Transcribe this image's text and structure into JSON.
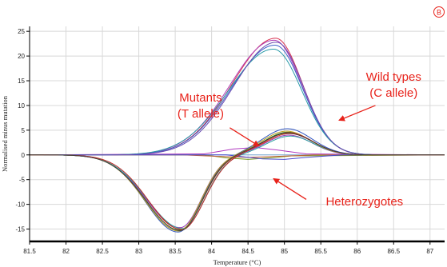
{
  "panel_label": "B",
  "colors": {
    "annotation": "#e8231b",
    "grid": "#d8d8d8",
    "axis": "#000000",
    "zero_line": "#7aa9d6"
  },
  "chart_data": {
    "type": "line",
    "title": "",
    "xlabel": "Temperature (°C)",
    "ylabel": "Normalised minus mutation",
    "xlim": [
      81.5,
      87.2
    ],
    "ylim": [
      -17.5,
      26
    ],
    "grid": true,
    "x_ticks": [
      81.5,
      82,
      82.5,
      83,
      83.5,
      84,
      84.5,
      85,
      85.5,
      86,
      86.5,
      87
    ],
    "x_tick_labels": [
      "81.5",
      "82",
      "82.5",
      "83",
      "83.5",
      "84",
      "84.5",
      "85",
      "85.5",
      "86",
      "86.5",
      "87"
    ],
    "y_ticks": [
      25,
      20,
      15,
      10,
      5,
      0,
      -5,
      -10,
      -15
    ],
    "y_tick_labels": [
      "25",
      "20",
      "15",
      "10",
      "5",
      "0",
      "-5",
      "-10",
      "-15"
    ],
    "annotations": [
      {
        "label": "Mutants",
        "x": 83.85,
        "y": 10.8
      },
      {
        "label": "(T allele)",
        "x": 83.85,
        "y": 7.6
      },
      {
        "label": "Wild types",
        "x": 86.5,
        "y": 15.0
      },
      {
        "label": "(C allele)",
        "x": 86.5,
        "y": 11.8
      },
      {
        "label": "Heterozygotes",
        "x": 86.1,
        "y": -10.2
      }
    ],
    "arrows": [
      {
        "from": [
          84.25,
          5.5
        ],
        "to": [
          84.65,
          1.8
        ]
      },
      {
        "from": [
          86.25,
          10.0
        ],
        "to": [
          85.75,
          7.0
        ]
      },
      {
        "from": [
          85.3,
          -9.0
        ],
        "to": [
          84.85,
          -4.8
        ]
      }
    ],
    "series": [
      {
        "group": "wild-type",
        "color": "#d83050",
        "peak_x": 84.88,
        "peak_y": 23.6,
        "width_left": 0.6,
        "width_right": 0.37,
        "start_x": 82.1
      },
      {
        "group": "wild-type",
        "color": "#b040b8",
        "peak_x": 84.86,
        "peak_y": 23.2,
        "width_left": 0.61,
        "width_right": 0.38,
        "start_x": 82.1
      },
      {
        "group": "wild-type",
        "color": "#3c64c8",
        "peak_x": 84.87,
        "peak_y": 22.2,
        "width_left": 0.6,
        "width_right": 0.38,
        "start_x": 82.15
      },
      {
        "group": "wild-type",
        "color": "#2a9aa8",
        "peak_x": 84.85,
        "peak_y": 21.4,
        "width_left": 0.62,
        "width_right": 0.39,
        "start_x": 82.2
      },
      {
        "group": "wild-type",
        "color": "#6a4ab0",
        "peak_x": 84.89,
        "peak_y": 22.8,
        "width_left": 0.59,
        "width_right": 0.37,
        "start_x": 82.1
      },
      {
        "group": "heterozygote",
        "color": "#228b22",
        "dip_x": 83.56,
        "dip_y": -15.2,
        "dip_wl": 0.46,
        "dip_wr": 0.3,
        "peak_x": 85.05,
        "peak_y": 4.6,
        "peak_w": 0.33
      },
      {
        "group": "heterozygote",
        "color": "#d84a20",
        "dip_x": 83.58,
        "dip_y": -15.0,
        "dip_wl": 0.47,
        "dip_wr": 0.3,
        "peak_x": 85.07,
        "peak_y": 4.3,
        "peak_w": 0.33
      },
      {
        "group": "heterozygote",
        "color": "#3055c0",
        "dip_x": 83.54,
        "dip_y": -15.6,
        "dip_wl": 0.45,
        "dip_wr": 0.31,
        "peak_x": 85.04,
        "peak_y": 5.3,
        "peak_w": 0.34
      },
      {
        "group": "heterozygote",
        "color": "#9a3ab8",
        "dip_x": 83.57,
        "dip_y": -14.7,
        "dip_wl": 0.47,
        "dip_wr": 0.29,
        "peak_x": 85.06,
        "peak_y": 4.0,
        "peak_w": 0.32
      },
      {
        "group": "heterozygote",
        "color": "#2aa0a0",
        "dip_x": 83.6,
        "dip_y": -14.9,
        "dip_wl": 0.48,
        "dip_wr": 0.3,
        "peak_x": 85.08,
        "peak_y": 3.8,
        "peak_w": 0.32
      },
      {
        "group": "heterozygote",
        "color": "#b8a020",
        "dip_x": 83.55,
        "dip_y": -15.4,
        "dip_wl": 0.46,
        "dip_wr": 0.3,
        "peak_x": 85.03,
        "peak_y": 4.8,
        "peak_w": 0.33
      },
      {
        "group": "heterozygote",
        "color": "#c02a2a",
        "dip_x": 83.59,
        "dip_y": -15.1,
        "dip_wl": 0.46,
        "dip_wr": 0.31,
        "peak_x": 85.06,
        "peak_y": 4.5,
        "peak_w": 0.33
      },
      {
        "group": "heterozygote",
        "color": "#404040",
        "dip_x": 83.57,
        "dip_y": -15.3,
        "dip_wl": 0.47,
        "dip_wr": 0.3,
        "peak_x": 85.05,
        "peak_y": 4.4,
        "peak_w": 0.34
      },
      {
        "group": "mutant",
        "color": "#7a9a20",
        "points": [
          [
            81.5,
            0
          ],
          [
            83.9,
            0
          ],
          [
            84.2,
            -0.6
          ],
          [
            84.5,
            -0.9
          ],
          [
            84.8,
            -0.6
          ],
          [
            85.1,
            -0.2
          ],
          [
            87.2,
            0
          ]
        ]
      },
      {
        "group": "mutant",
        "color": "#b03ac0",
        "points": [
          [
            81.5,
            0
          ],
          [
            83.9,
            0.2
          ],
          [
            84.3,
            1.2
          ],
          [
            84.6,
            1.5
          ],
          [
            84.9,
            1.0
          ],
          [
            85.3,
            0.2
          ],
          [
            87.2,
            0
          ]
        ]
      },
      {
        "group": "mutant",
        "color": "#c0603a",
        "points": [
          [
            81.5,
            0
          ],
          [
            83.6,
            0
          ],
          [
            84.1,
            -0.3
          ],
          [
            84.5,
            -0.5
          ],
          [
            84.9,
            -0.3
          ],
          [
            85.4,
            0
          ],
          [
            87.2,
            0
          ]
        ]
      },
      {
        "group": "mutant",
        "color": "#4a4ad0",
        "points": [
          [
            81.5,
            0
          ],
          [
            84.2,
            0
          ],
          [
            84.7,
            -0.8
          ],
          [
            85.0,
            -0.9
          ],
          [
            85.3,
            -0.5
          ],
          [
            85.8,
            0
          ],
          [
            87.2,
            0
          ]
        ]
      }
    ]
  }
}
